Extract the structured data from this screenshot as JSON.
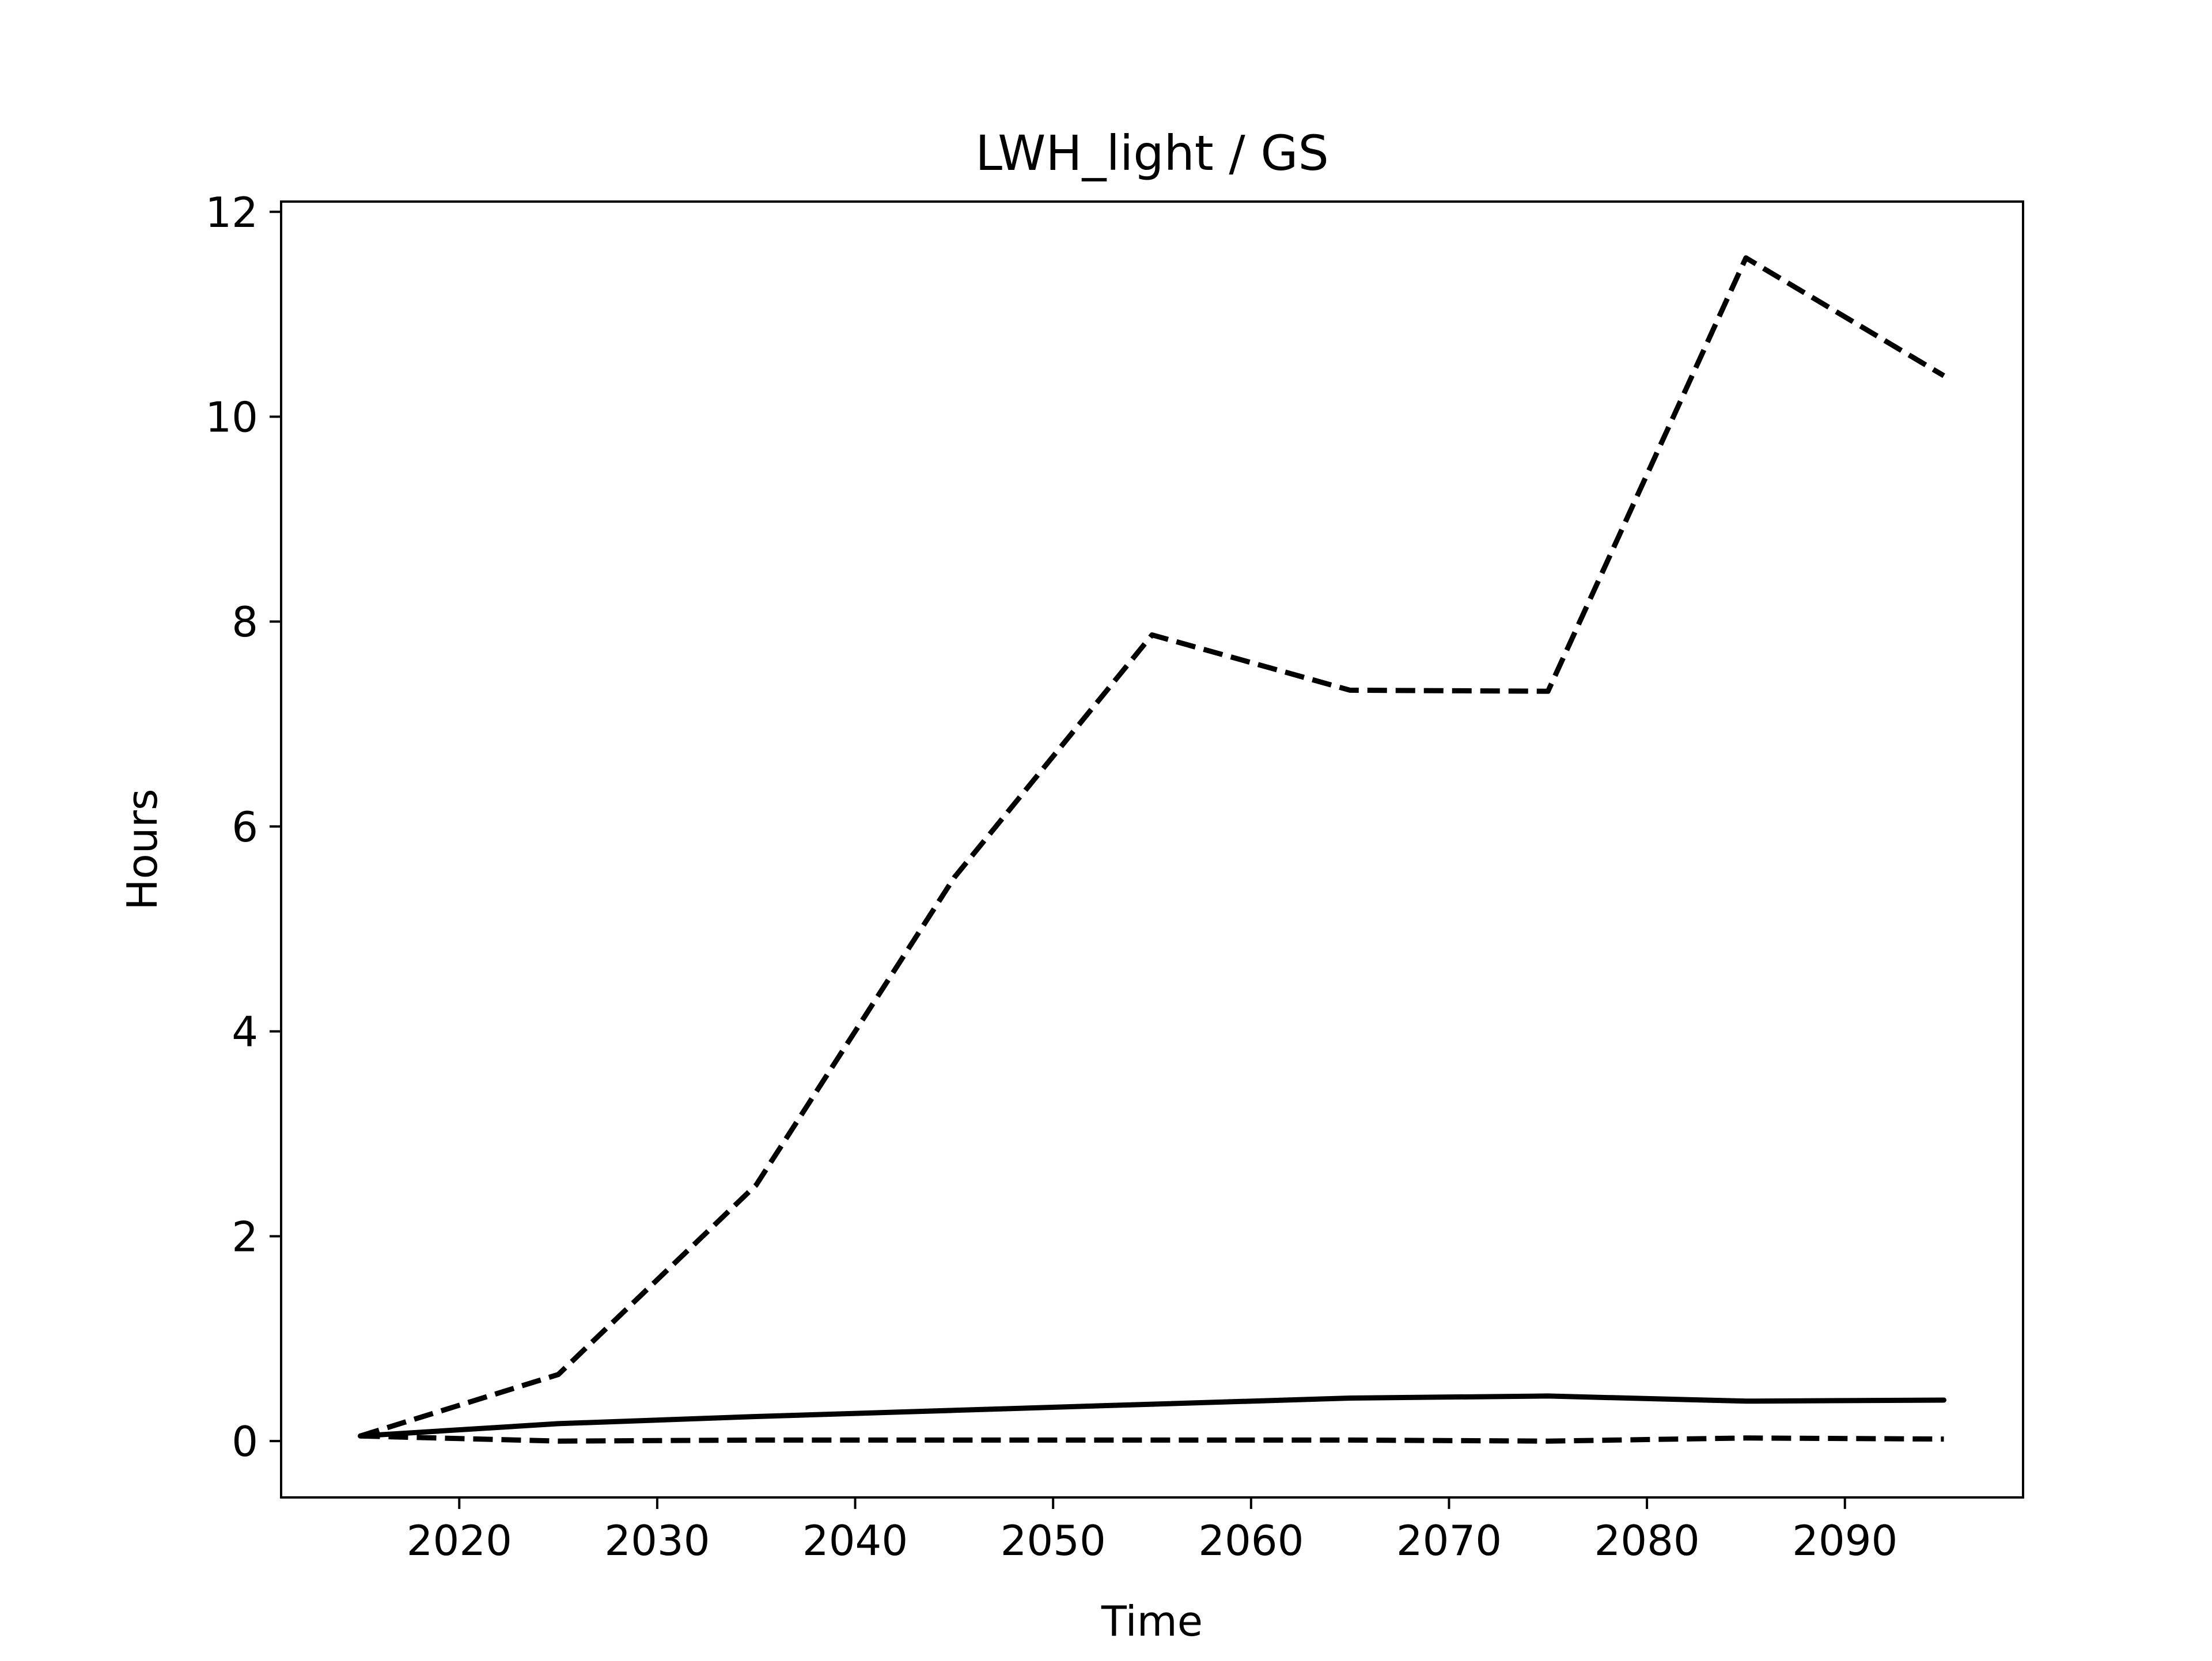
{
  "chart_data": {
    "type": "line",
    "title": "LWH_light / GS",
    "xlabel": "Time",
    "ylabel": "Hours",
    "xlim": [
      2011,
      2099
    ],
    "ylim": [
      -0.55,
      12.1
    ],
    "x_ticks": [
      2020,
      2030,
      2040,
      2050,
      2060,
      2070,
      2080,
      2090
    ],
    "y_ticks": [
      0,
      2,
      4,
      6,
      8,
      10,
      12
    ],
    "grid": false,
    "legend": "none",
    "line_color": "#000000",
    "series": [
      {
        "style": "solid",
        "x": [
          2015,
          2025,
          2035,
          2045,
          2055,
          2065,
          2075,
          2085,
          2095
        ],
        "y": [
          0.05,
          0.17,
          0.24,
          0.3,
          0.36,
          0.42,
          0.44,
          0.39,
          0.4
        ]
      },
      {
        "style": "dashed",
        "x": [
          2015,
          2025,
          2035,
          2045,
          2055,
          2065,
          2075,
          2085,
          2095
        ],
        "y": [
          0.05,
          0.65,
          2.5,
          5.5,
          7.87,
          7.33,
          7.32,
          11.55,
          10.4
        ]
      },
      {
        "style": "dashed",
        "x": [
          2015,
          2025,
          2035,
          2045,
          2055,
          2065,
          2075,
          2085,
          2095
        ],
        "y": [
          0.05,
          0.0,
          0.01,
          0.01,
          0.01,
          0.01,
          0.0,
          0.03,
          0.02
        ]
      }
    ]
  }
}
